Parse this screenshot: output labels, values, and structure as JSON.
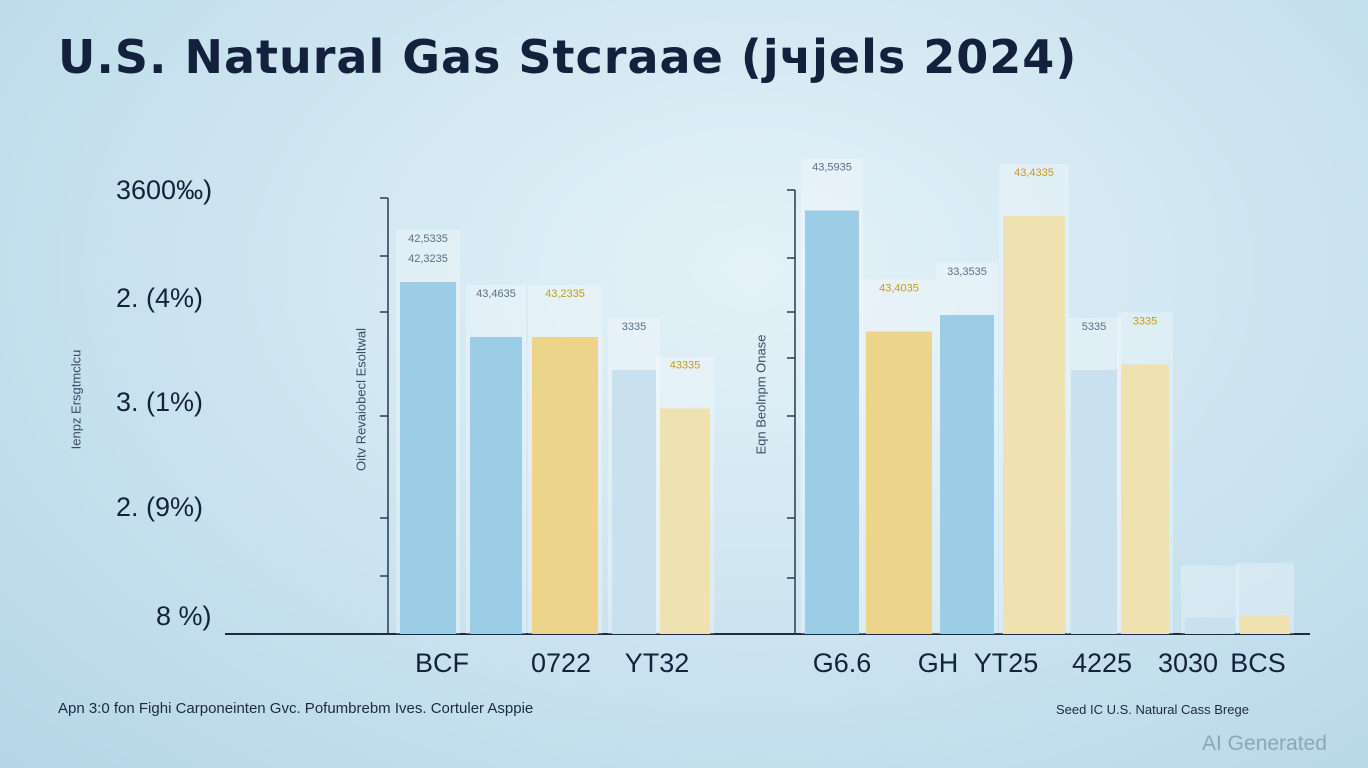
{
  "title": "U.S. Natural Gas Stcraae (јчjels 2024)",
  "left_axis_ticks": [
    "3600‰)",
    "2. (4%)",
    "3. (1%)",
    "2. (9%)",
    "8 %)"
  ],
  "left_axis_title": "Ienpz Ersgtmclcu",
  "panel1_axis_title": "Oitv Revaiobecl Esoltwal",
  "panel2_axis_title": "Eqn Beolnpm Onase",
  "footer_left": "Apn 3:0 fon Fighi Carponeinten Gvc. Pofumbrebm Ives. Cortuler Asppie",
  "footer_right": "Seed IC U.S. Natural Cass Brege",
  "watermark": "AI Generated",
  "colors": {
    "blue": "#9ccde6",
    "yellow": "#ecd48a",
    "pale_blue": "#c9e1ee",
    "pale_yellow": "#ede2b0"
  },
  "chart_data": [
    {
      "type": "bar",
      "categories": [
        "BCF",
        "0722",
        "YT32"
      ],
      "bars": [
        {
          "value": 3.2,
          "color": "blue",
          "labels": [
            "42,5335",
            "42,3235"
          ]
        },
        {
          "value": 2.7,
          "color": "blue",
          "labels": [
            "43,4635"
          ]
        },
        {
          "value": 2.7,
          "color": "yellow",
          "labels": [
            "43,2335"
          ]
        },
        {
          "value": 2.4,
          "color": "pale_blue",
          "labels": [
            "3335"
          ]
        },
        {
          "value": 2.05,
          "color": "pale_yellow",
          "labels": [
            "43335"
          ]
        }
      ]
    },
    {
      "type": "bar",
      "categories": [
        "G6.6",
        "GH",
        "YT25",
        "4225",
        "3030",
        "BCS"
      ],
      "bars": [
        {
          "value": 3.85,
          "color": "blue",
          "labels": [
            "43,5935"
          ]
        },
        {
          "value": 2.75,
          "color": "yellow",
          "labels": [
            "43,4035"
          ]
        },
        {
          "value": 2.9,
          "color": "blue",
          "labels": [
            "33,3535"
          ]
        },
        {
          "value": 3.8,
          "color": "pale_yellow",
          "labels": [
            "43,4335"
          ]
        },
        {
          "value": 2.4,
          "color": "pale_blue",
          "labels": [
            "5335"
          ]
        },
        {
          "value": 2.45,
          "color": "pale_yellow",
          "labels": [
            "3335"
          ]
        },
        {
          "value": 0.15,
          "color": "pale_blue",
          "labels": []
        },
        {
          "value": 0.17,
          "color": "pale_yellow",
          "labels": []
        }
      ]
    }
  ]
}
